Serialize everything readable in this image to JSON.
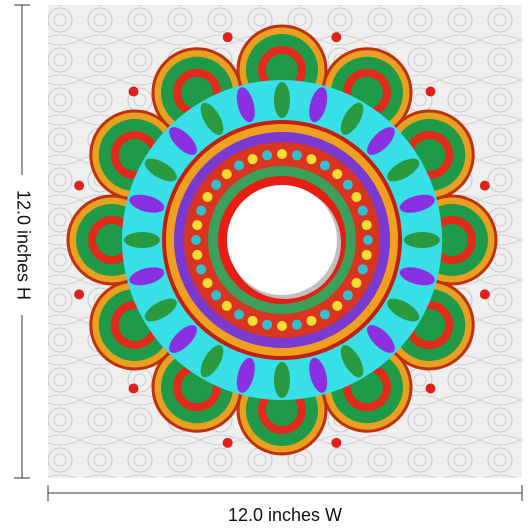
{
  "dimensions": {
    "height": "12.0 inches H",
    "width": "12.0 inches W"
  }
}
